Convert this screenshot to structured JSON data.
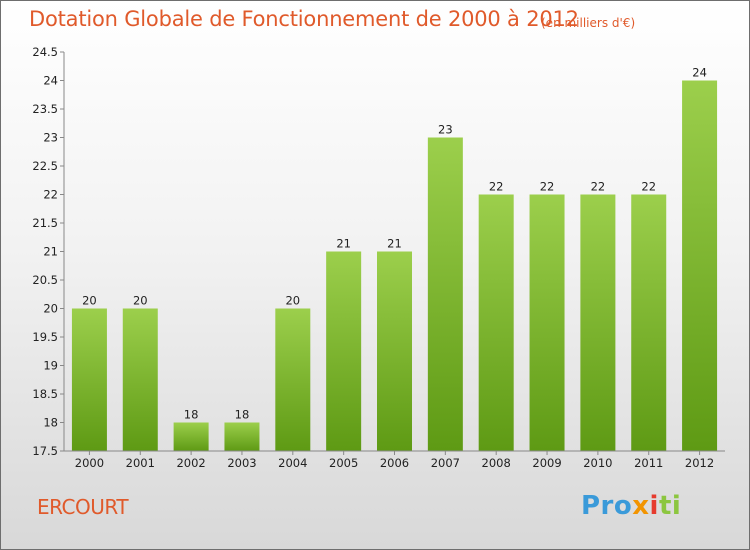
{
  "header": {
    "title": "Dotation Globale de Fonctionnement de 2000 à 2012",
    "subtitle": "(en milliers d'€)"
  },
  "footer": {
    "commune": "ERCOURT",
    "logo": {
      "p1": "Pro",
      "p2": "x",
      "p3": "i",
      "p4": "ti"
    }
  },
  "colors": {
    "bar_top": "#9ccf4c",
    "bar_bottom": "#5e9a14",
    "title": "#e05a2b"
  },
  "chart_data": {
    "type": "bar",
    "title": "Dotation Globale de Fonctionnement de 2000 à 2012",
    "subtitle": "(en milliers d'€)",
    "categories": [
      "2000",
      "2001",
      "2002",
      "2003",
      "2004",
      "2005",
      "2006",
      "2007",
      "2008",
      "2009",
      "2010",
      "2011",
      "2012"
    ],
    "values": [
      20,
      20,
      18,
      18,
      20,
      21,
      21,
      23,
      22,
      22,
      22,
      22,
      24
    ],
    "ylim": [
      17.5,
      24.5
    ],
    "yticks": [
      "17.5",
      "18",
      "18.5",
      "19",
      "19.5",
      "20",
      "20.5",
      "21",
      "21.5",
      "22",
      "22.5",
      "23",
      "23.5",
      "24",
      "24.5"
    ],
    "grid": false
  }
}
